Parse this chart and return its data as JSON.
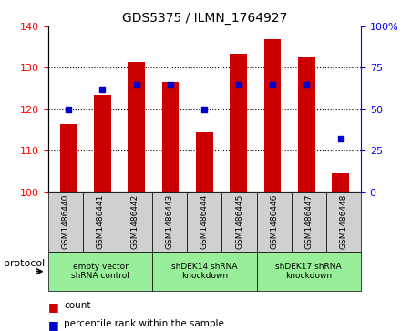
{
  "title": "GDS5375 / ILMN_1764927",
  "samples": [
    "GSM1486440",
    "GSM1486441",
    "GSM1486442",
    "GSM1486443",
    "GSM1486444",
    "GSM1486445",
    "GSM1486446",
    "GSM1486447",
    "GSM1486448"
  ],
  "counts": [
    116.5,
    123.5,
    131.5,
    126.5,
    114.5,
    133.5,
    137.0,
    132.5,
    104.5
  ],
  "percentiles": [
    50,
    62,
    65,
    65,
    50,
    65,
    65,
    65,
    32
  ],
  "ylim_left": [
    100,
    140
  ],
  "ylim_right": [
    0,
    100
  ],
  "yticks_left": [
    100,
    110,
    120,
    130,
    140
  ],
  "yticks_right": [
    0,
    25,
    50,
    75,
    100
  ],
  "protocols": [
    {
      "label": "empty vector\nshRNA control",
      "start": 0,
      "end": 3
    },
    {
      "label": "shDEK14 shRNA\nknockdown",
      "start": 3,
      "end": 6
    },
    {
      "label": "shDEK17 shRNA\nknockdown",
      "start": 6,
      "end": 9
    }
  ],
  "bar_color": "#cc0000",
  "dot_color": "#0000cc",
  "green_color": "#99ee99",
  "gray_color": "#d0d0d0",
  "background_color": "#ffffff",
  "bar_width": 0.5,
  "protocol_label": "protocol"
}
